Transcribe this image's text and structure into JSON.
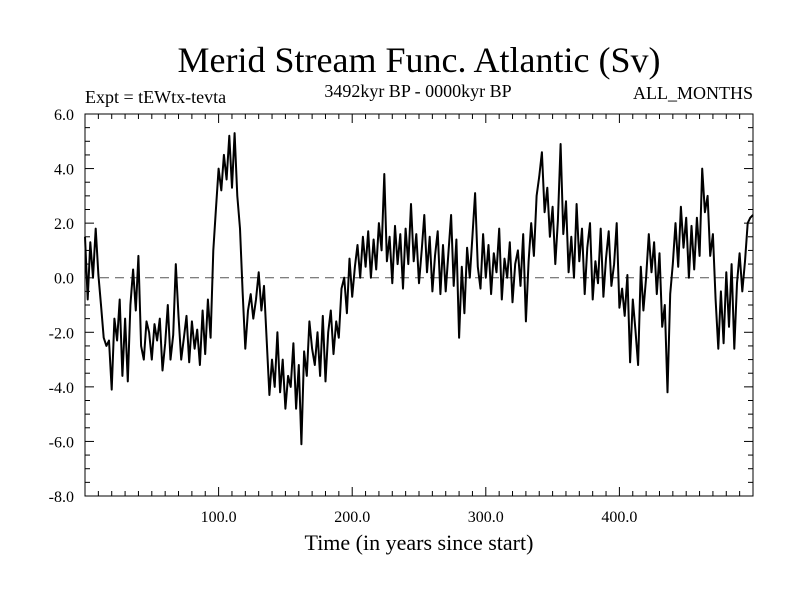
{
  "chart_data": {
    "type": "line",
    "title": "Merid Stream Func. Atlantic (Sv)",
    "subtitle_left": "Expt = tEWtx-tevta",
    "subtitle_center": "3492kyr BP - 0000kyr BP",
    "subtitle_right": "ALL_MONTHS",
    "xlabel": "Time (in years since start)",
    "ylabel": "",
    "xlim": [
      0,
      500
    ],
    "ylim": [
      -8.0,
      6.0
    ],
    "xticks": [
      100,
      200,
      300,
      400
    ],
    "xtick_labels": [
      "100.0",
      "200.0",
      "300.0",
      "400.0"
    ],
    "yticks": [
      6,
      4,
      2,
      0,
      -2,
      -4,
      -6,
      -8
    ],
    "ytick_labels": [
      "6.0",
      "4.0",
      "2.0",
      "0.0",
      "-2.0",
      "-4.0",
      "-6.0",
      "-8.0"
    ],
    "zero_line": "dashed",
    "grid": false,
    "series": [
      {
        "name": "Merid Stream Func. Atlantic",
        "color": "#000000",
        "anchors": [
          [
            0,
            1.5
          ],
          [
            2,
            -0.8
          ],
          [
            4,
            1.3
          ],
          [
            6,
            0.0
          ],
          [
            8,
            1.8
          ],
          [
            10,
            0.1
          ],
          [
            12,
            -1.0
          ],
          [
            14,
            -2.2
          ],
          [
            16,
            -2.5
          ],
          [
            18,
            -2.3
          ],
          [
            20,
            -4.1
          ],
          [
            22,
            -1.5
          ],
          [
            24,
            -2.3
          ],
          [
            26,
            -0.8
          ],
          [
            28,
            -3.6
          ],
          [
            30,
            -1.5
          ],
          [
            32,
            -3.8
          ],
          [
            34,
            -1.0
          ],
          [
            36,
            0.3
          ],
          [
            38,
            -1.2
          ],
          [
            40,
            0.8
          ],
          [
            42,
            -2.5
          ],
          [
            44,
            -3.0
          ],
          [
            46,
            -1.6
          ],
          [
            48,
            -2.0
          ],
          [
            50,
            -3.0
          ],
          [
            52,
            -1.7
          ],
          [
            54,
            -2.3
          ],
          [
            56,
            -1.5
          ],
          [
            58,
            -3.4
          ],
          [
            60,
            -2.4
          ],
          [
            62,
            -1.0
          ],
          [
            64,
            -3.0
          ],
          [
            66,
            -2.1
          ],
          [
            68,
            0.5
          ],
          [
            70,
            -1.4
          ],
          [
            72,
            -3.0
          ],
          [
            74,
            -2.2
          ],
          [
            76,
            -1.4
          ],
          [
            78,
            -3.1
          ],
          [
            80,
            -1.6
          ],
          [
            82,
            -2.6
          ],
          [
            84,
            -1.9
          ],
          [
            86,
            -3.2
          ],
          [
            88,
            -1.2
          ],
          [
            90,
            -2.8
          ],
          [
            92,
            -0.8
          ],
          [
            94,
            -2.2
          ],
          [
            96,
            1.0
          ],
          [
            98,
            2.5
          ],
          [
            100,
            4.0
          ],
          [
            102,
            3.2
          ],
          [
            104,
            4.5
          ],
          [
            106,
            3.6
          ],
          [
            108,
            5.2
          ],
          [
            110,
            3.3
          ],
          [
            112,
            5.3
          ],
          [
            114,
            3.0
          ],
          [
            116,
            1.8
          ],
          [
            118,
            -0.5
          ],
          [
            120,
            -2.6
          ],
          [
            122,
            -1.2
          ],
          [
            124,
            -0.6
          ],
          [
            126,
            -1.5
          ],
          [
            128,
            -0.8
          ],
          [
            130,
            0.2
          ],
          [
            132,
            -1.2
          ],
          [
            134,
            -0.3
          ],
          [
            136,
            -2.3
          ],
          [
            138,
            -4.3
          ],
          [
            140,
            -3.0
          ],
          [
            142,
            -4.0
          ],
          [
            144,
            -2.0
          ],
          [
            146,
            -4.2
          ],
          [
            148,
            -3.0
          ],
          [
            150,
            -4.8
          ],
          [
            152,
            -3.6
          ],
          [
            154,
            -4.0
          ],
          [
            156,
            -2.4
          ],
          [
            158,
            -4.8
          ],
          [
            160,
            -3.2
          ],
          [
            162,
            -6.1
          ],
          [
            164,
            -2.7
          ],
          [
            166,
            -3.6
          ],
          [
            168,
            -1.6
          ],
          [
            170,
            -2.6
          ],
          [
            172,
            -3.2
          ],
          [
            174,
            -2.0
          ],
          [
            176,
            -3.6
          ],
          [
            178,
            -1.4
          ],
          [
            180,
            -3.8
          ],
          [
            182,
            -2.0
          ],
          [
            184,
            -1.2
          ],
          [
            186,
            -2.8
          ],
          [
            188,
            -1.6
          ],
          [
            190,
            -2.2
          ],
          [
            192,
            -0.4
          ],
          [
            194,
            0.0
          ],
          [
            196,
            -1.3
          ],
          [
            198,
            0.7
          ],
          [
            200,
            -0.7
          ],
          [
            202,
            0.4
          ],
          [
            204,
            1.2
          ],
          [
            206,
            0.0
          ],
          [
            208,
            1.5
          ],
          [
            210,
            0.4
          ],
          [
            212,
            1.7
          ],
          [
            214,
            0.0
          ],
          [
            216,
            1.4
          ],
          [
            218,
            0.3
          ],
          [
            220,
            2.0
          ],
          [
            222,
            1.0
          ],
          [
            224,
            3.8
          ],
          [
            226,
            0.6
          ],
          [
            228,
            1.5
          ],
          [
            230,
            -0.2
          ],
          [
            232,
            1.9
          ],
          [
            234,
            0.5
          ],
          [
            236,
            1.6
          ],
          [
            238,
            -0.4
          ],
          [
            240,
            1.8
          ],
          [
            242,
            0.5
          ],
          [
            244,
            2.7
          ],
          [
            246,
            0.6
          ],
          [
            248,
            1.6
          ],
          [
            250,
            -0.2
          ],
          [
            252,
            1.0
          ],
          [
            254,
            2.3
          ],
          [
            256,
            0.2
          ],
          [
            258,
            1.5
          ],
          [
            260,
            -0.5
          ],
          [
            262,
            0.8
          ],
          [
            264,
            1.7
          ],
          [
            266,
            -0.6
          ],
          [
            268,
            1.2
          ],
          [
            270,
            -0.5
          ],
          [
            272,
            0.9
          ],
          [
            274,
            2.3
          ],
          [
            276,
            -0.3
          ],
          [
            278,
            1.4
          ],
          [
            280,
            -2.2
          ],
          [
            282,
            0.4
          ],
          [
            284,
            -1.3
          ],
          [
            286,
            1.1
          ],
          [
            288,
            0.0
          ],
          [
            290,
            1.5
          ],
          [
            292,
            3.1
          ],
          [
            294,
            0.4
          ],
          [
            296,
            -0.4
          ],
          [
            298,
            1.6
          ],
          [
            300,
            0.0
          ],
          [
            302,
            1.2
          ],
          [
            304,
            -0.6
          ],
          [
            306,
            0.9
          ],
          [
            308,
            0.2
          ],
          [
            310,
            1.8
          ],
          [
            312,
            -0.8
          ],
          [
            314,
            0.7
          ],
          [
            316,
            0.0
          ],
          [
            318,
            1.3
          ],
          [
            320,
            -0.9
          ],
          [
            322,
            0.5
          ],
          [
            324,
            1.0
          ],
          [
            326,
            -0.3
          ],
          [
            328,
            1.6
          ],
          [
            330,
            -1.6
          ],
          [
            332,
            0.6
          ],
          [
            334,
            2.0
          ],
          [
            336,
            0.8
          ],
          [
            338,
            3.0
          ],
          [
            340,
            3.7
          ],
          [
            342,
            4.6
          ],
          [
            344,
            2.4
          ],
          [
            346,
            3.3
          ],
          [
            348,
            1.5
          ],
          [
            350,
            2.6
          ],
          [
            352,
            0.5
          ],
          [
            354,
            2.1
          ],
          [
            356,
            4.9
          ],
          [
            358,
            1.6
          ],
          [
            360,
            2.8
          ],
          [
            362,
            0.2
          ],
          [
            364,
            1.5
          ],
          [
            366,
            0.0
          ],
          [
            368,
            2.7
          ],
          [
            370,
            0.6
          ],
          [
            372,
            1.8
          ],
          [
            374,
            -0.6
          ],
          [
            376,
            1.1
          ],
          [
            378,
            2.0
          ],
          [
            380,
            -0.8
          ],
          [
            382,
            0.6
          ],
          [
            384,
            -0.2
          ],
          [
            386,
            1.8
          ],
          [
            388,
            -0.7
          ],
          [
            390,
            0.7
          ],
          [
            392,
            1.7
          ],
          [
            394,
            -0.3
          ],
          [
            396,
            0.5
          ],
          [
            398,
            2.0
          ],
          [
            400,
            -1.1
          ],
          [
            402,
            -0.4
          ],
          [
            404,
            -1.4
          ],
          [
            406,
            0.1
          ],
          [
            408,
            -3.1
          ],
          [
            410,
            -0.8
          ],
          [
            412,
            -1.9
          ],
          [
            414,
            -3.2
          ],
          [
            416,
            0.4
          ],
          [
            418,
            -1.2
          ],
          [
            420,
            0.0
          ],
          [
            422,
            1.6
          ],
          [
            424,
            0.2
          ],
          [
            426,
            1.3
          ],
          [
            428,
            -0.6
          ],
          [
            430,
            0.9
          ],
          [
            432,
            -1.8
          ],
          [
            434,
            -1.0
          ],
          [
            436,
            -4.2
          ],
          [
            438,
            -0.6
          ],
          [
            440,
            0.5
          ],
          [
            442,
            2.0
          ],
          [
            444,
            0.4
          ],
          [
            446,
            2.6
          ],
          [
            448,
            1.1
          ],
          [
            450,
            2.2
          ],
          [
            452,
            0.0
          ],
          [
            454,
            1.9
          ],
          [
            456,
            0.3
          ],
          [
            458,
            2.2
          ],
          [
            460,
            0.8
          ],
          [
            462,
            4.0
          ],
          [
            464,
            2.4
          ],
          [
            466,
            3.0
          ],
          [
            468,
            0.8
          ],
          [
            470,
            1.6
          ],
          [
            472,
            -0.8
          ],
          [
            474,
            -2.6
          ],
          [
            476,
            -0.5
          ],
          [
            478,
            -2.4
          ],
          [
            480,
            0.2
          ],
          [
            482,
            -1.8
          ],
          [
            484,
            0.5
          ],
          [
            486,
            -2.6
          ],
          [
            488,
            -0.2
          ],
          [
            490,
            0.9
          ],
          [
            492,
            -0.5
          ],
          [
            494,
            0.6
          ],
          [
            496,
            2.0
          ],
          [
            498,
            2.2
          ],
          [
            500,
            2.3
          ]
        ]
      }
    ]
  }
}
